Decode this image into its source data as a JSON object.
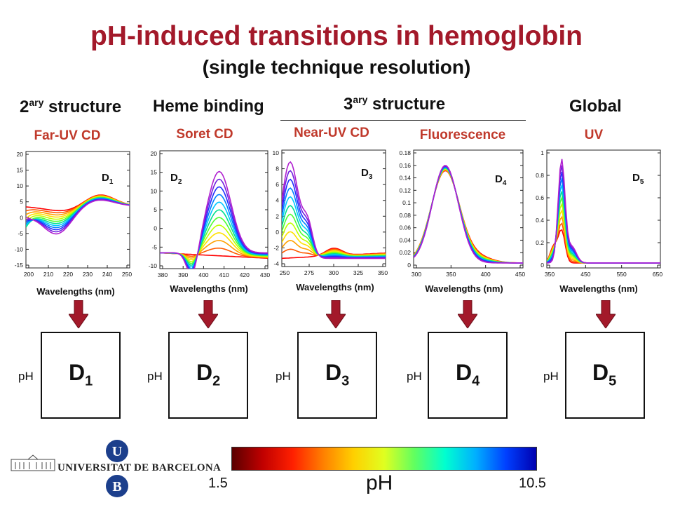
{
  "header": {
    "title": "pH-induced transitions in hemoglobin",
    "subtitle": "(single technique resolution)"
  },
  "categories": {
    "secondary": {
      "base": "2",
      "sup": "ary",
      "rest": " structure"
    },
    "heme": "Heme binding",
    "tertiary": {
      "base": "3",
      "sup": "ary",
      "rest": " structure"
    },
    "global": "Global"
  },
  "panels": [
    {
      "technique": "Far-UV CD",
      "xlabel": "Wavelengths (nm)",
      "label_base": "D",
      "label_sub": "1",
      "xticks": [
        "200",
        "210",
        "220",
        "230",
        "240",
        "250"
      ],
      "yticks": [
        "20",
        "15",
        "10",
        "5",
        "0",
        "-5",
        "-10",
        "-15"
      ]
    },
    {
      "technique": "Soret CD",
      "xlabel": "Wavelengths (nm)",
      "label_base": "D",
      "label_sub": "2",
      "xticks": [
        "380",
        "390",
        "400",
        "410",
        "420",
        "430"
      ],
      "yticks": [
        "20",
        "15",
        "10",
        "5",
        "0",
        "-5",
        "-10"
      ]
    },
    {
      "technique": "Near-UV CD",
      "xlabel": "Wavelengths (nm)",
      "label_base": "D",
      "label_sub": "3",
      "xticks": [
        "250",
        "275",
        "300",
        "325",
        "350"
      ],
      "yticks": [
        "10",
        "8",
        "6",
        "4",
        "2",
        "0",
        "-2",
        "-4"
      ]
    },
    {
      "technique": "Fluorescence",
      "xlabel": "Wavelengths (nm)",
      "label_base": "D",
      "label_sub": "4",
      "xticks": [
        "300",
        "350",
        "400",
        "450"
      ],
      "yticks": [
        "0.18",
        "0.16",
        "0.14",
        "0.12",
        "0.1",
        "0.08",
        "0.06",
        "0.04",
        "0.02",
        "0"
      ]
    },
    {
      "technique": "UV",
      "xlabel": "Wavelengths (nm)",
      "label_base": "D",
      "label_sub": "5",
      "xticks": [
        "350",
        "450",
        "550",
        "650"
      ],
      "yticks": [
        "1",
        "0.8",
        "0.6",
        "0.4",
        "0.2",
        "0"
      ]
    }
  ],
  "matrices": [
    {
      "axis_label": "pH",
      "label_base": "D",
      "label_sub": "1"
    },
    {
      "axis_label": "pH",
      "label_base": "D",
      "label_sub": "2"
    },
    {
      "axis_label": "pH",
      "label_base": "D",
      "label_sub": "3"
    },
    {
      "axis_label": "pH",
      "label_base": "D",
      "label_sub": "4"
    },
    {
      "axis_label": "pH",
      "label_base": "D",
      "label_sub": "5"
    }
  ],
  "scale": {
    "min_label": "1.5",
    "max_label": "10.5",
    "title": "pH",
    "colors": [
      "#5a0000",
      "#c00000",
      "#ff2000",
      "#ff8000",
      "#ffd000",
      "#e0ff20",
      "#60ff60",
      "#00ffd0",
      "#00b0ff",
      "#0040ff",
      "#0000b0"
    ]
  },
  "university": {
    "name": "UNIVERSITAT DE BARCELONA",
    "letter_u": "U",
    "letter_b": "B"
  },
  "colors": {
    "title": "#a3192a",
    "technique": "#c0392b",
    "arrow": "#a3192a",
    "uni_blue": "#1c3f8c"
  }
}
